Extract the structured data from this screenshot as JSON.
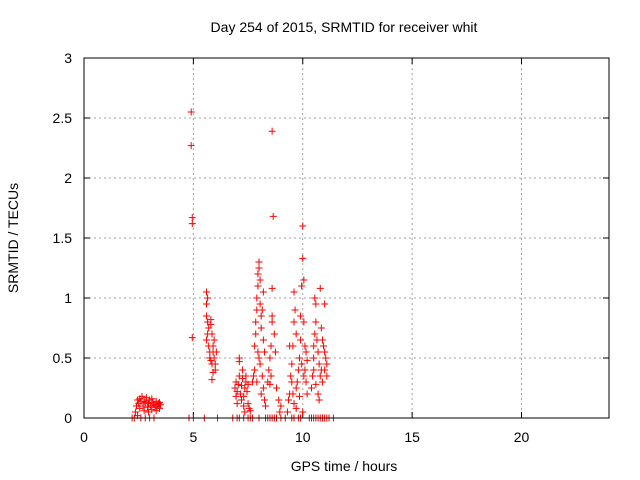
{
  "chart_data": {
    "type": "scatter",
    "title": "Day 254 of 2015, SRMTID for receiver whit",
    "xlabel": "GPS time / hours",
    "ylabel": "SRMTID / TECUs",
    "xlim": [
      0,
      24
    ],
    "ylim": [
      0,
      3
    ],
    "xticks": [
      0,
      5,
      10,
      15,
      20
    ],
    "xtick_labels": [
      "0",
      "5",
      "10",
      "15",
      "20"
    ],
    "yticks": [
      0,
      0.5,
      1,
      1.5,
      2,
      2.5,
      3
    ],
    "ytick_labels": [
      "0",
      "0.5",
      "1",
      "1.5",
      "2",
      "2.5",
      "3"
    ],
    "grid": true,
    "marker": "+",
    "color": "#ff0000",
    "series": [
      {
        "name": "SRMTID",
        "points": [
          [
            2.2,
            0.0
          ],
          [
            2.3,
            0.0
          ],
          [
            2.35,
            0.05
          ],
          [
            2.4,
            0.1
          ],
          [
            2.45,
            0.15
          ],
          [
            2.5,
            0.12
          ],
          [
            2.55,
            0.08
          ],
          [
            2.6,
            0.14
          ],
          [
            2.65,
            0.18
          ],
          [
            2.7,
            0.1
          ],
          [
            2.75,
            0.06
          ],
          [
            2.8,
            0.13
          ],
          [
            2.85,
            0.17
          ],
          [
            2.9,
            0.09
          ],
          [
            2.95,
            0.12
          ],
          [
            3.0,
            0.15
          ],
          [
            3.05,
            0.1
          ],
          [
            3.1,
            0.07
          ],
          [
            3.15,
            0.13
          ],
          [
            3.2,
            0.11
          ],
          [
            3.25,
            0.09
          ],
          [
            3.3,
            0.14
          ],
          [
            3.35,
            0.1
          ],
          [
            3.4,
            0.12
          ],
          [
            3.45,
            0.08
          ],
          [
            3.5,
            0.11
          ],
          [
            2.6,
            0.0
          ],
          [
            2.8,
            0.0
          ],
          [
            3.0,
            0.0
          ],
          [
            3.2,
            0.0
          ],
          [
            2.45,
            0.02
          ],
          [
            2.55,
            0.16
          ],
          [
            2.75,
            0.14
          ],
          [
            2.95,
            0.05
          ],
          [
            3.1,
            0.16
          ],
          [
            3.3,
            0.06
          ],
          [
            3.45,
            0.13
          ],
          [
            4.9,
            2.55
          ],
          [
            4.9,
            2.27
          ],
          [
            4.95,
            1.67
          ],
          [
            4.95,
            1.62
          ],
          [
            4.95,
            0.67
          ],
          [
            4.8,
            0.0
          ],
          [
            5.0,
            0.0
          ],
          [
            5.5,
            0.0
          ],
          [
            5.6,
            1.05
          ],
          [
            5.65,
            1.0
          ],
          [
            5.6,
            0.95
          ],
          [
            5.6,
            0.85
          ],
          [
            5.65,
            0.8
          ],
          [
            5.7,
            0.75
          ],
          [
            5.65,
            0.7
          ],
          [
            5.6,
            0.65
          ],
          [
            5.7,
            0.6
          ],
          [
            5.75,
            0.55
          ],
          [
            5.8,
            0.82
          ],
          [
            5.8,
            0.78
          ],
          [
            5.85,
            0.7
          ],
          [
            5.75,
            0.5
          ],
          [
            5.8,
            0.48
          ],
          [
            5.85,
            0.45
          ],
          [
            5.9,
            0.6
          ],
          [
            5.9,
            0.55
          ],
          [
            5.95,
            0.5
          ],
          [
            6.0,
            0.45
          ],
          [
            6.0,
            0.4
          ],
          [
            5.9,
            0.38
          ],
          [
            5.85,
            0.32
          ],
          [
            6.05,
            0.55
          ],
          [
            5.95,
            0.65
          ],
          [
            6.1,
            0.0
          ],
          [
            6.8,
            0.0
          ],
          [
            7.0,
            0.0
          ],
          [
            7.1,
            0.0
          ],
          [
            7.3,
            0.0
          ],
          [
            7.5,
            0.0
          ],
          [
            7.6,
            0.0
          ],
          [
            7.7,
            0.0
          ],
          [
            6.9,
            0.25
          ],
          [
            6.95,
            0.3
          ],
          [
            7.0,
            0.22
          ],
          [
            7.05,
            0.28
          ],
          [
            7.1,
            0.35
          ],
          [
            7.15,
            0.2
          ],
          [
            7.2,
            0.27
          ],
          [
            7.25,
            0.33
          ],
          [
            7.3,
            0.18
          ],
          [
            7.35,
            0.25
          ],
          [
            7.1,
            0.5
          ],
          [
            7.1,
            0.47
          ],
          [
            7.2,
            0.15
          ],
          [
            7.3,
            0.1
          ],
          [
            7.35,
            0.05
          ],
          [
            7.4,
            0.3
          ],
          [
            7.45,
            0.22
          ],
          [
            7.5,
            0.12
          ],
          [
            7.55,
            0.08
          ],
          [
            7.6,
            0.06
          ],
          [
            7.25,
            0.4
          ],
          [
            7.0,
            0.12
          ],
          [
            6.95,
            0.18
          ],
          [
            7.4,
            0.35
          ],
          [
            7.5,
            0.28
          ],
          [
            7.7,
            0.3
          ],
          [
            7.75,
            0.35
          ],
          [
            7.8,
            0.4
          ],
          [
            7.8,
            0.6
          ],
          [
            7.85,
            0.7
          ],
          [
            7.85,
            0.8
          ],
          [
            7.9,
            0.9
          ],
          [
            7.9,
            1.0
          ],
          [
            7.95,
            1.1
          ],
          [
            7.95,
            1.2
          ],
          [
            8.0,
            1.3
          ],
          [
            8.0,
            1.25
          ],
          [
            8.05,
            1.15
          ],
          [
            8.05,
            0.95
          ],
          [
            8.1,
            0.85
          ],
          [
            8.1,
            0.75
          ],
          [
            8.15,
            0.9
          ],
          [
            8.2,
            1.05
          ],
          [
            8.2,
            0.65
          ],
          [
            8.25,
            0.55
          ],
          [
            8.0,
            0.5
          ],
          [
            8.05,
            0.45
          ],
          [
            7.95,
            0.55
          ],
          [
            7.9,
            0.3
          ],
          [
            8.15,
            0.35
          ],
          [
            8.1,
            0.2
          ],
          [
            8.2,
            0.25
          ],
          [
            8.25,
            0.15
          ],
          [
            8.3,
            0.1
          ],
          [
            8.0,
            0.0
          ],
          [
            8.3,
            0.0
          ],
          [
            8.4,
            0.0
          ],
          [
            8.5,
            0.0
          ],
          [
            8.6,
            0.0
          ],
          [
            8.7,
            0.0
          ],
          [
            8.8,
            0.0
          ],
          [
            9.0,
            0.0
          ],
          [
            9.2,
            0.0
          ],
          [
            8.4,
            0.3
          ],
          [
            8.45,
            0.4
          ],
          [
            8.5,
            0.5
          ],
          [
            8.55,
            0.6
          ],
          [
            8.6,
            0.85
          ],
          [
            8.6,
            0.8
          ],
          [
            8.55,
            0.35
          ],
          [
            8.5,
            0.28
          ],
          [
            8.6,
            1.08
          ],
          [
            8.6,
            2.39
          ],
          [
            8.65,
            1.68
          ],
          [
            8.7,
            0.7
          ],
          [
            8.75,
            0.55
          ],
          [
            8.8,
            0.25
          ],
          [
            8.9,
            0.15
          ],
          [
            8.95,
            0.05
          ],
          [
            9.0,
            0.1
          ],
          [
            9.3,
            0.05
          ],
          [
            9.35,
            0.15
          ],
          [
            9.4,
            0.2
          ],
          [
            9.45,
            0.35
          ],
          [
            9.5,
            0.45
          ],
          [
            9.55,
            0.6
          ],
          [
            9.6,
            0.8
          ],
          [
            9.6,
            1.05
          ],
          [
            9.65,
            0.9
          ],
          [
            9.7,
            0.7
          ],
          [
            9.7,
            0.25
          ],
          [
            9.75,
            0.3
          ],
          [
            9.8,
            0.4
          ],
          [
            9.85,
            0.5
          ],
          [
            9.9,
            0.65
          ],
          [
            9.9,
            0.85
          ],
          [
            9.95,
            1.1
          ],
          [
            10.0,
            1.33
          ],
          [
            10.0,
            1.6
          ],
          [
            10.05,
            1.15
          ],
          [
            10.05,
            0.8
          ],
          [
            10.1,
            0.6
          ],
          [
            10.1,
            0.4
          ],
          [
            10.15,
            0.3
          ],
          [
            10.2,
            0.2
          ],
          [
            10.0,
            0.05
          ],
          [
            9.5,
            0.0
          ],
          [
            9.6,
            0.0
          ],
          [
            9.8,
            0.0
          ],
          [
            9.9,
            0.0
          ],
          [
            9.4,
            0.6
          ],
          [
            9.5,
            0.3
          ],
          [
            9.55,
            0.2
          ],
          [
            9.6,
            0.12
          ],
          [
            9.7,
            0.08
          ],
          [
            9.85,
            0.18
          ],
          [
            9.95,
            0.45
          ],
          [
            10.05,
            0.35
          ],
          [
            10.15,
            0.55
          ],
          [
            10.2,
            0.48
          ],
          [
            10.3,
            0.0
          ],
          [
            10.4,
            0.0
          ],
          [
            10.5,
            0.0
          ],
          [
            10.6,
            0.0
          ],
          [
            10.7,
            0.0
          ],
          [
            10.8,
            0.0
          ],
          [
            10.9,
            0.0
          ],
          [
            11.0,
            0.0
          ],
          [
            11.1,
            0.0
          ],
          [
            11.2,
            0.0
          ],
          [
            11.4,
            0.0
          ],
          [
            10.4,
            0.25
          ],
          [
            10.45,
            0.35
          ],
          [
            10.5,
            0.5
          ],
          [
            10.5,
            0.6
          ],
          [
            10.55,
            0.7
          ],
          [
            10.55,
            1.0
          ],
          [
            10.6,
            0.95
          ],
          [
            10.6,
            0.8
          ],
          [
            10.65,
            0.65
          ],
          [
            10.7,
            0.55
          ],
          [
            10.75,
            0.45
          ],
          [
            10.8,
            0.35
          ],
          [
            10.8,
            1.08
          ],
          [
            10.85,
            0.75
          ],
          [
            10.9,
            0.65
          ],
          [
            10.95,
            0.6
          ],
          [
            11.0,
            0.55
          ],
          [
            11.0,
            0.95
          ],
          [
            11.05,
            0.5
          ],
          [
            11.1,
            0.45
          ],
          [
            10.7,
            0.2
          ],
          [
            10.75,
            0.15
          ],
          [
            10.85,
            0.4
          ],
          [
            10.9,
            0.3
          ],
          [
            11.0,
            0.4
          ],
          [
            10.6,
            0.28
          ],
          [
            10.5,
            0.4
          ],
          [
            11.1,
            0.35
          ]
        ]
      }
    ]
  }
}
